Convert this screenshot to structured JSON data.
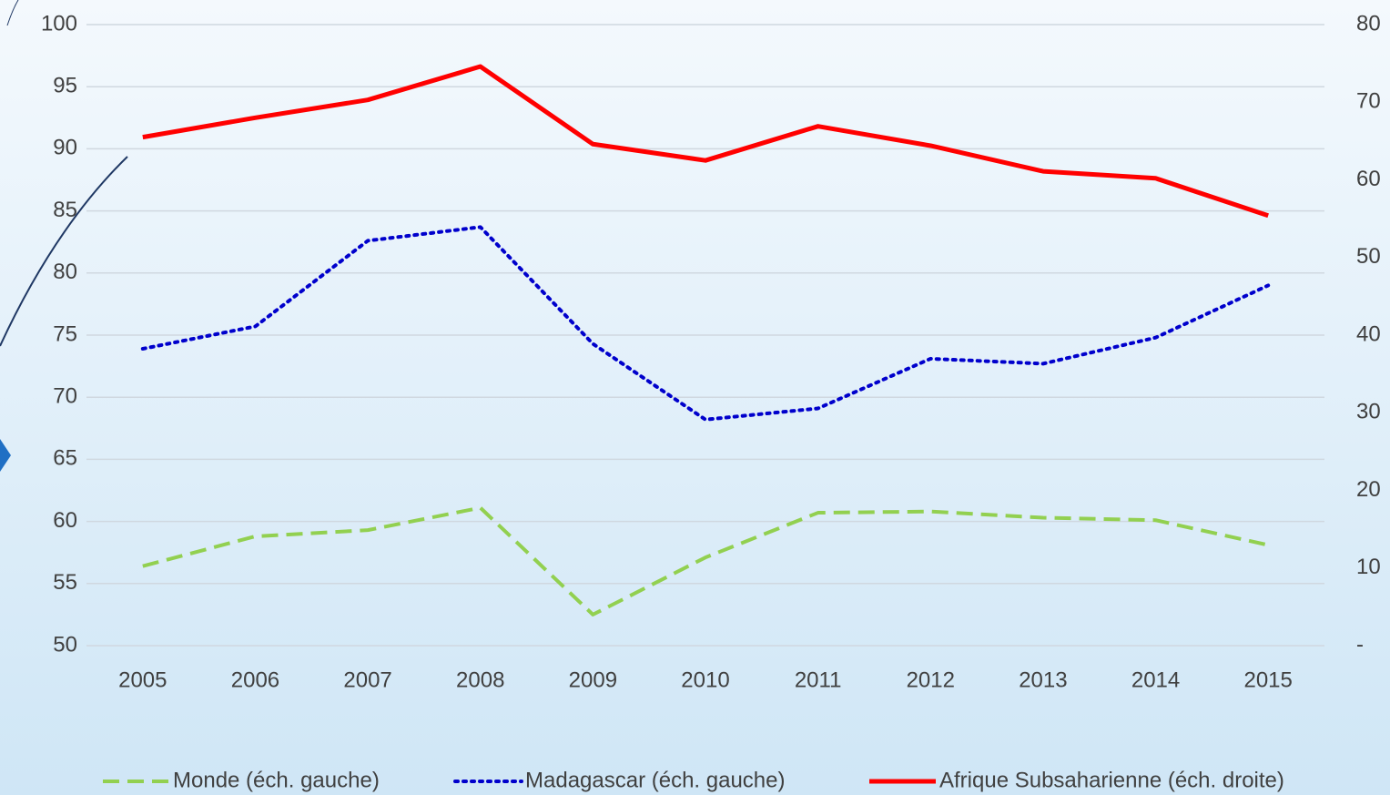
{
  "chart_data": {
    "type": "line",
    "categories": [
      "2005",
      "2006",
      "2007",
      "2008",
      "2009",
      "2010",
      "2011",
      "2012",
      "2013",
      "2014",
      "2015"
    ],
    "series": [
      {
        "name": "Monde (éch. gauche)",
        "color": "#92d050",
        "dash": "dashed",
        "axis": "y",
        "values": [
          56.4,
          58.8,
          59.3,
          61.1,
          52.5,
          57.1,
          60.7,
          60.8,
          60.3,
          60.1,
          58.1
        ]
      },
      {
        "name": "Madagascar (éch. gauche)",
        "color": "#0000cc",
        "dash": "dotted",
        "axis": "y",
        "values": [
          73.9,
          75.7,
          82.6,
          83.7,
          74.3,
          68.2,
          69.1,
          73.1,
          72.7,
          74.8,
          79.0
        ]
      },
      {
        "name": "Afrique Subsaharienne (éch. droite)",
        "color": "#ff0000",
        "dash": "solid",
        "axis": "y2",
        "values": [
          65.5,
          68.0,
          70.3,
          74.6,
          64.6,
          62.5,
          66.9,
          64.4,
          61.1,
          60.2,
          55.4
        ]
      }
    ],
    "ylim": [
      50,
      100
    ],
    "yticks": [
      50,
      55,
      60,
      65,
      70,
      75,
      80,
      85,
      90,
      95,
      100
    ],
    "y2lim": [
      0,
      80
    ],
    "y2ticks": [
      {
        "value": 0,
        "label": "-"
      },
      10,
      20,
      30,
      40,
      50,
      60,
      70,
      80
    ],
    "grid": true,
    "legend": "bottom"
  }
}
